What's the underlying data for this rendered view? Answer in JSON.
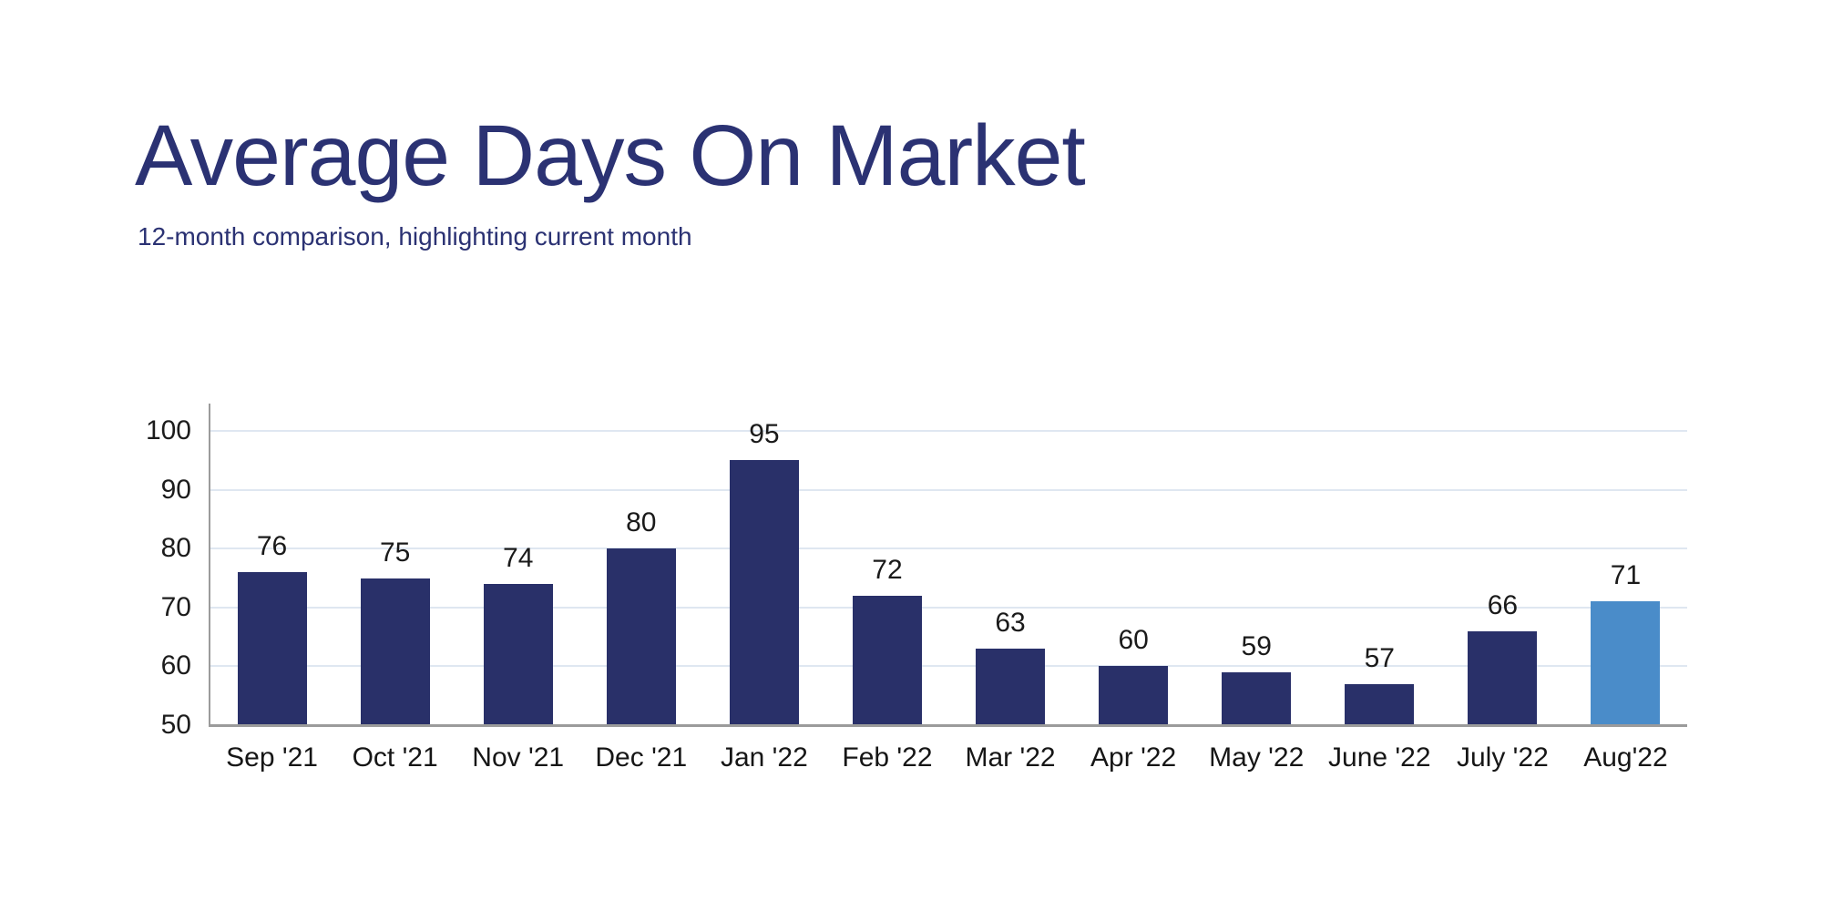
{
  "header": {
    "title": "Average Days On Market",
    "subtitle": "12-month comparison, highlighting current month"
  },
  "chart_data": {
    "type": "bar",
    "title": "Average Days On Market",
    "subtitle": "12-month comparison, highlighting current month",
    "categories": [
      "Sep '21",
      "Oct '21",
      "Nov '21",
      "Dec '21",
      "Jan '22",
      "Feb '22",
      "Mar '22",
      "Apr '22",
      "May '22",
      "June '22",
      "July '22",
      "Aug'22"
    ],
    "values": [
      76,
      75,
      74,
      80,
      95,
      72,
      63,
      60,
      59,
      57,
      66,
      71
    ],
    "highlighted_category": "Aug'22",
    "highlight_index": 11,
    "xlabel": "",
    "ylabel": "",
    "ylim": [
      50,
      100
    ],
    "yticks": [
      50,
      60,
      70,
      80,
      90,
      100
    ],
    "grid": true,
    "value_labels": true,
    "legend": "none",
    "colors": {
      "bar": "#293069",
      "highlight": "#4a8cc9",
      "gridline": "#dfe7f1",
      "axis": "#9b9b9b",
      "title_text": "#2b3273",
      "label_text": "#1a1a1a"
    }
  }
}
